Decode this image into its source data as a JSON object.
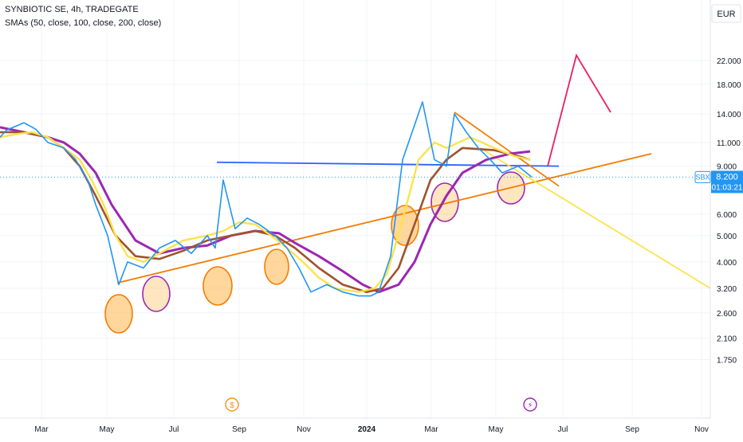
{
  "header": {
    "symbol_line": "SYNBIOTIC SE, 4h, TRADEGATE",
    "indicator_line": "SMAs (50, close, 100, close, 200, close)"
  },
  "price_axis": {
    "currency": "EUR",
    "ticks": [
      "22.000",
      "18.000",
      "14.000",
      "11.000",
      "9.000",
      "6.000",
      "5.000",
      "4.000",
      "3.200",
      "2.600",
      "2.100",
      "1.750"
    ],
    "tick_values": [
      22,
      18,
      14,
      11,
      9,
      6,
      5,
      4,
      3.2,
      2.6,
      2.1,
      1.75
    ]
  },
  "time_axis": {
    "labels": [
      "Mar",
      "May",
      "Jul",
      "Sep",
      "Nov",
      "2024",
      "Mar",
      "May",
      "Jul",
      "Sep",
      "Nov"
    ]
  },
  "last_price": {
    "ticker": "SBX",
    "price": "8.200",
    "countdown": "01:03:21",
    "value": 8.2
  },
  "event_markers": [
    {
      "symbol": "$",
      "type": "dividend",
      "color": "#f7931a"
    },
    {
      "symbol": "⚡",
      "type": "earnings",
      "color": "#9c27b0"
    }
  ],
  "colors": {
    "price": "#2196f3",
    "sma50": "#ffeb3b",
    "sma100": "#a0522d",
    "sma200": "#9c27b0",
    "support": "#f57c00",
    "resistance": "#2962ff",
    "projection": "#e91e63",
    "bg": "#ffffff",
    "grid": "#f0f3fa"
  },
  "chart_data": {
    "type": "line",
    "symbol": "SYNBIOTIC SE",
    "interval": "4h",
    "exchange": "TRADEGATE",
    "scale": "log",
    "ylim": [
      1.7,
      25
    ],
    "grid": true,
    "legend": "top-left",
    "x_labels": [
      "Mar",
      "May",
      "Jul",
      "Sep",
      "Nov",
      "2024",
      "Mar",
      "May",
      "Jul",
      "Sep",
      "Nov"
    ],
    "series": [
      {
        "name": "",
        "role": "price",
        "values": [
          11.5,
          12.2,
          13.0,
          12.3,
          11.0,
          10.5,
          9.5,
          8.0,
          6.5,
          5.0,
          3.3,
          4.0,
          3.8,
          4.5,
          4.8,
          4.3,
          5.0,
          4.5,
          8.0,
          5.3,
          5.8,
          5.5,
          5.0,
          4.5,
          3.8,
          3.1,
          3.3,
          3.1,
          3.0,
          3.0,
          3.1,
          4.2,
          9.5,
          15.5,
          9.5,
          9.0,
          14.0,
          12.0,
          10.5,
          9.5,
          8.5,
          9.0,
          8.2
        ]
      },
      {
        "name": "",
        "role": "sma50",
        "values": [
          11.5,
          11.8,
          12.0,
          11.5,
          10.5,
          9.5,
          8.0,
          6.5,
          5.0,
          4.2,
          4.0,
          4.3,
          4.8,
          5.0,
          5.2,
          5.6,
          5.5,
          5.0,
          4.5,
          4.0,
          3.5,
          3.2,
          3.1,
          3.2,
          3.6,
          4.5,
          6.5,
          9.5,
          11.0,
          10.5,
          11.5,
          10.5,
          9.8,
          9.5
        ]
      },
      {
        "name": "",
        "role": "sma100",
        "values": [
          12.0,
          12.0,
          11.5,
          10.5,
          9.0,
          7.0,
          5.0,
          4.2,
          4.1,
          4.4,
          4.8,
          5.0,
          5.2,
          5.0,
          4.5,
          3.8,
          3.3,
          3.1,
          3.2,
          3.8,
          5.5,
          8.0,
          9.5,
          10.5,
          10.3,
          9.8,
          9.5
        ]
      },
      {
        "name": "",
        "role": "sma200",
        "values": [
          12.5,
          12.0,
          11.5,
          11.0,
          10.0,
          8.5,
          6.5,
          4.8,
          4.3,
          4.5,
          4.6,
          5.0,
          5.2,
          5.1,
          4.7,
          4.2,
          3.7,
          3.3,
          3.1,
          3.3,
          4.0,
          5.5,
          7.0,
          8.5,
          9.5,
          10.0,
          10.2
        ]
      }
    ],
    "drawings": [
      {
        "type": "trendline",
        "role": "support",
        "color": "#f57c00",
        "start_value": 3.35,
        "end_value": 10.0
      },
      {
        "type": "trendline",
        "role": "resistance",
        "color": "#2962ff",
        "start_value": 9.3,
        "end_value": 9.0
      },
      {
        "type": "trendline",
        "role": "downtrend",
        "color": "#f57c00",
        "start_value": 14.2,
        "end_value": 7.6
      },
      {
        "type": "trendline",
        "role": "projection-down",
        "color": "#ffeb3b",
        "start_value": 10.5,
        "end_value": 3.2
      },
      {
        "type": "path",
        "role": "projection-up",
        "color": "#e91e63",
        "values": [
          9.0,
          23.0,
          14.2
        ]
      }
    ]
  }
}
